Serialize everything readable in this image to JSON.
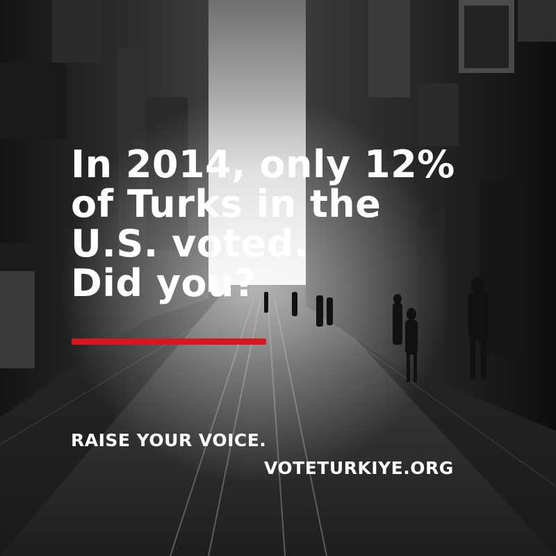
{
  "headline": {
    "line1": "In 2014, only 12%",
    "line2": "of Turks in the",
    "line3": "U.S. voted.",
    "line4": "Did you?"
  },
  "tagline": "RAISE YOUR VOICE.",
  "website": "VOTETURKIYE.ORG",
  "colors": {
    "accent_underline": "#d9161f",
    "text": "#ffffff"
  }
}
